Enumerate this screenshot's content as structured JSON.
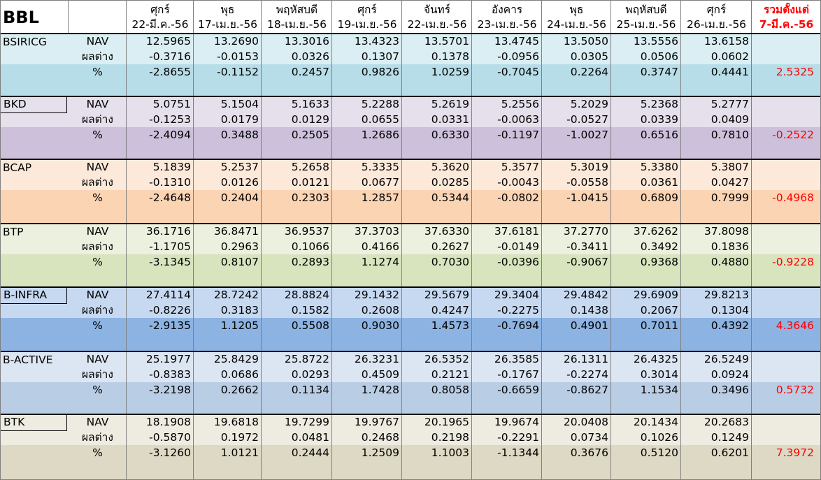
{
  "sheet": {
    "title": "BBL",
    "header_days": [
      "ศุกร์",
      "พุธ",
      "พฤหัสบดี",
      "ศุกร์",
      "จันทร์",
      "อังคาร",
      "พุธ",
      "พฤหัสบดี",
      "ศุกร์"
    ],
    "header_dates": [
      "22-มี.ค.-56",
      "17-เม.ย.-56",
      "18-เม.ย.-56",
      "19-เม.ย.-56",
      "22-เม.ย.-56",
      "23-เม.ย.-56",
      "24-เม.ย.-56",
      "25-เม.ย.-56",
      "26-เม.ย.-56"
    ],
    "total_header_line1": "รวมตั้งแต่",
    "total_header_line2": "7-มี.ค.-56",
    "row_labels": {
      "nav": "NAV",
      "diff": "ผลต่าง",
      "pct": "%"
    },
    "funds": [
      {
        "name": "BSIRICG",
        "colors": {
          "light": "#daeef3",
          "dark": "#b7dde8"
        },
        "nav": [
          "12.5965",
          "13.2690",
          "13.3016",
          "13.4323",
          "13.5701",
          "13.4745",
          "13.5050",
          "13.5556",
          "13.6158"
        ],
        "diff": [
          "-0.3716",
          "-0.0153",
          "0.0326",
          "0.1307",
          "0.1378",
          "-0.0956",
          "0.0305",
          "0.0506",
          "0.0602"
        ],
        "pct": [
          "-2.8655",
          "-0.1152",
          "0.2457",
          "0.9826",
          "1.0259",
          "-0.7045",
          "0.2264",
          "0.3747",
          "0.4441"
        ],
        "total": "2.5325"
      },
      {
        "name": "BKD",
        "colors": {
          "light": "#e5e0ec",
          "dark": "#ccc0da"
        },
        "nav": [
          "5.0751",
          "5.1504",
          "5.1633",
          "5.2288",
          "5.2619",
          "5.2556",
          "5.2029",
          "5.2368",
          "5.2777"
        ],
        "diff": [
          "-0.1253",
          "0.0179",
          "0.0129",
          "0.0655",
          "0.0331",
          "-0.0063",
          "-0.0527",
          "0.0339",
          "0.0409"
        ],
        "pct": [
          "-2.4094",
          "0.3488",
          "0.2505",
          "1.2686",
          "0.6330",
          "-0.1197",
          "-1.0027",
          "0.6516",
          "0.7810"
        ],
        "total": "-0.2522"
      },
      {
        "name": "BCAP",
        "colors": {
          "light": "#fde9d9",
          "dark": "#fbd4b4"
        },
        "nav": [
          "5.1839",
          "5.2537",
          "5.2658",
          "5.3335",
          "5.3620",
          "5.3577",
          "5.3019",
          "5.3380",
          "5.3807"
        ],
        "diff": [
          "-0.1310",
          "0.0126",
          "0.0121",
          "0.0677",
          "0.0285",
          "-0.0043",
          "-0.0558",
          "0.0361",
          "0.0427"
        ],
        "pct": [
          "-2.4648",
          "0.2404",
          "0.2303",
          "1.2857",
          "0.5344",
          "-0.0802",
          "-1.0415",
          "0.6809",
          "0.7999"
        ],
        "total": "-0.4968"
      },
      {
        "name": "BTP",
        "colors": {
          "light": "#ebf1de",
          "dark": "#d7e4bd"
        },
        "nav": [
          "36.1716",
          "36.8471",
          "36.9537",
          "37.3703",
          "37.6330",
          "37.6181",
          "37.2770",
          "37.6262",
          "37.8098"
        ],
        "diff": [
          "-1.1705",
          "0.2963",
          "0.1066",
          "0.4166",
          "0.2627",
          "-0.0149",
          "-0.3411",
          "0.3492",
          "0.1836"
        ],
        "pct": [
          "-3.1345",
          "0.8107",
          "0.2893",
          "1.1274",
          "0.7030",
          "-0.0396",
          "-0.9067",
          "0.9368",
          "0.4880"
        ],
        "total": "-0.9228"
      },
      {
        "name": "B-INFRA",
        "colors": {
          "light": "#c6d9f1",
          "dark": "#8db3e2"
        },
        "nav": [
          "27.4114",
          "28.7242",
          "28.8824",
          "29.1432",
          "29.5679",
          "29.3404",
          "29.4842",
          "29.6909",
          "29.8213"
        ],
        "diff": [
          "-0.8226",
          "0.3183",
          "0.1582",
          "0.2608",
          "0.4247",
          "-0.2275",
          "0.1438",
          "0.2067",
          "0.1304"
        ],
        "pct": [
          "-2.9135",
          "1.1205",
          "0.5508",
          "0.9030",
          "1.4573",
          "-0.7694",
          "0.4901",
          "0.7011",
          "0.4392"
        ],
        "total": "4.3646"
      },
      {
        "name": "B-ACTIVE",
        "colors": {
          "light": "#dce6f2",
          "dark": "#b9cde5"
        },
        "nav": [
          "25.1977",
          "25.8429",
          "25.8722",
          "26.3231",
          "26.5352",
          "26.3585",
          "26.1311",
          "26.4325",
          "26.5249"
        ],
        "diff": [
          "-0.8383",
          "0.0686",
          "0.0293",
          "0.4509",
          "0.2121",
          "-0.1767",
          "-0.2274",
          "0.3014",
          "0.0924"
        ],
        "pct": [
          "-3.2198",
          "0.2662",
          "0.1134",
          "1.7428",
          "0.8058",
          "-0.6659",
          "-0.8627",
          "1.1534",
          "0.3496"
        ],
        "total": "0.5732"
      },
      {
        "name": "BTK",
        "colors": {
          "light": "#eeece1",
          "dark": "#ddd9c4"
        },
        "nav": [
          "18.1908",
          "19.6818",
          "19.7299",
          "19.9767",
          "20.1965",
          "19.9674",
          "20.0408",
          "20.1434",
          "20.2683"
        ],
        "diff": [
          "-0.5870",
          "0.1972",
          "0.0481",
          "0.2468",
          "0.2198",
          "-0.2291",
          "0.0734",
          "0.1026",
          "0.1249"
        ],
        "pct": [
          "-3.1260",
          "1.0121",
          "0.2444",
          "1.2509",
          "1.1003",
          "-1.1344",
          "0.3676",
          "0.5120",
          "0.6201"
        ],
        "total": "7.3972"
      }
    ]
  }
}
